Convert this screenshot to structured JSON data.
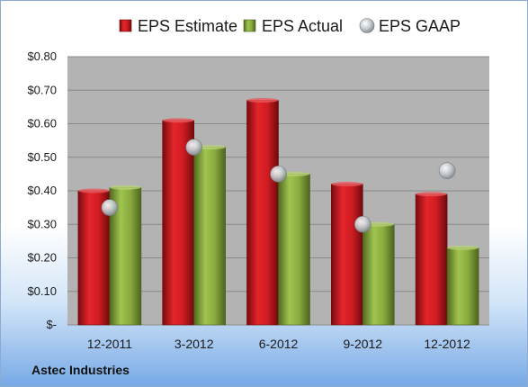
{
  "chart_data": {
    "type": "bar",
    "categories": [
      "12-2011",
      "3-2012",
      "6-2012",
      "9-2012",
      "12-2012"
    ],
    "series": [
      {
        "name": "EPS Estimate",
        "kind": "bar",
        "color": "#c0161c",
        "values": [
          0.4,
          0.61,
          0.67,
          0.42,
          0.39
        ]
      },
      {
        "name": "EPS Actual",
        "kind": "bar",
        "color": "#8aac3f",
        "values": [
          0.41,
          0.53,
          0.45,
          0.3,
          0.23
        ]
      },
      {
        "name": "EPS GAAP",
        "kind": "marker",
        "color": "#b9c0c7",
        "values": [
          0.35,
          0.53,
          0.45,
          0.3,
          0.46
        ]
      }
    ],
    "y_ticks": [
      "$-",
      "$0.10",
      "$0.20",
      "$0.30",
      "$0.40",
      "$0.50",
      "$0.60",
      "$0.70",
      "$0.80"
    ],
    "ylim": [
      0,
      0.8
    ],
    "grid": true,
    "legend_position": "top",
    "plot_background": "#b3b3b3"
  },
  "company": "Astec Industries"
}
